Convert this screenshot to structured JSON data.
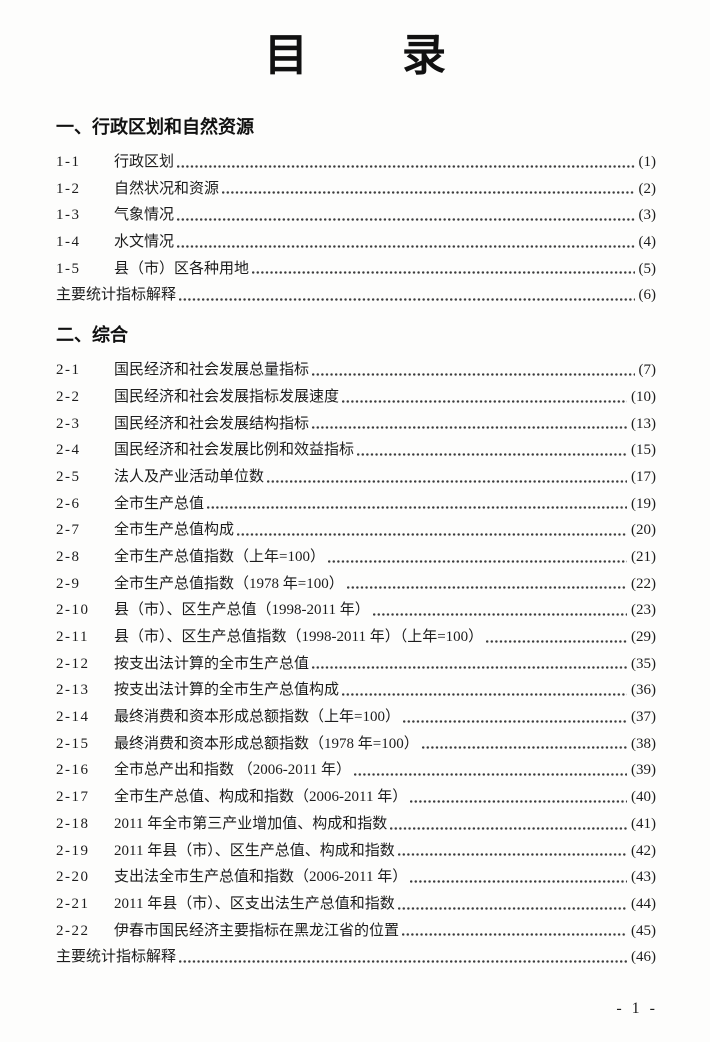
{
  "page": {
    "title": "目　　录",
    "page_number": "- 1 -"
  },
  "sections": [
    {
      "heading": "一、行政区划和自然资源",
      "entries": [
        {
          "no": "1-1",
          "title": "行政区划",
          "page": "(1)"
        },
        {
          "no": "1-2",
          "title": "自然状况和资源",
          "page": "(2)"
        },
        {
          "no": "1-3",
          "title": "气象情况",
          "page": "(3)"
        },
        {
          "no": "1-4",
          "title": "水文情况",
          "page": "(4)"
        },
        {
          "no": "1-5",
          "title": "县（市）区各种用地",
          "page": "(5)"
        },
        {
          "no": "",
          "title": "主要统计指标解释",
          "page": "(6)"
        }
      ]
    },
    {
      "heading": "二、综合",
      "entries": [
        {
          "no": "2-1",
          "title": "国民经济和社会发展总量指标",
          "page": "(7)"
        },
        {
          "no": "2-2",
          "title": "国民经济和社会发展指标发展速度",
          "page": "(10)"
        },
        {
          "no": "2-3",
          "title": "国民经济和社会发展结构指标",
          "page": "(13)"
        },
        {
          "no": "2-4",
          "title": "国民经济和社会发展比例和效益指标",
          "page": "(15)"
        },
        {
          "no": "2-5",
          "title": "法人及产业活动单位数",
          "page": "(17)"
        },
        {
          "no": "2-6",
          "title": "全市生产总值",
          "page": "(19)"
        },
        {
          "no": "2-7",
          "title": "全市生产总值构成",
          "page": "(20)"
        },
        {
          "no": "2-8",
          "title": "全市生产总值指数（上年=100）",
          "page": "(21)"
        },
        {
          "no": "2-9",
          "title": "全市生产总值指数（1978 年=100）",
          "page": "(22)"
        },
        {
          "no": "2-10",
          "title": "县（市）、区生产总值（1998-2011 年）",
          "page": "(23)"
        },
        {
          "no": "2-11",
          "title": "县（市）、区生产总值指数（1998-2011 年）（上年=100）",
          "page": "(29)"
        },
        {
          "no": "2-12",
          "title": "按支出法计算的全市生产总值",
          "page": "(35)"
        },
        {
          "no": "2-13",
          "title": "按支出法计算的全市生产总值构成",
          "page": "(36)"
        },
        {
          "no": "2-14",
          "title": "最终消费和资本形成总额指数（上年=100）",
          "page": "(37)"
        },
        {
          "no": "2-15",
          "title": "最终消费和资本形成总额指数（1978 年=100）",
          "page": "(38)"
        },
        {
          "no": "2-16",
          "title": "全市总产出和指数 （2006-2011 年）",
          "page": "(39)"
        },
        {
          "no": "2-17",
          "title": "全市生产总值、构成和指数（2006-2011 年）",
          "page": "(40)"
        },
        {
          "no": "2-18",
          "title": "2011 年全市第三产业增加值、构成和指数",
          "page": "(41)"
        },
        {
          "no": "2-19",
          "title": "2011 年县（市）、区生产总值、构成和指数",
          "page": "(42)"
        },
        {
          "no": "2-20",
          "title": "支出法全市生产总值和指数（2006-2011 年）",
          "page": "(43)"
        },
        {
          "no": "2-21",
          "title": "2011 年县（市）、区支出法生产总值和指数",
          "page": "(44)"
        },
        {
          "no": "2-22",
          "title": "伊春市国民经济主要指标在黑龙江省的位置",
          "page": "(45)"
        },
        {
          "no": "",
          "title": "主要统计指标解释",
          "page": "(46)"
        }
      ]
    }
  ]
}
